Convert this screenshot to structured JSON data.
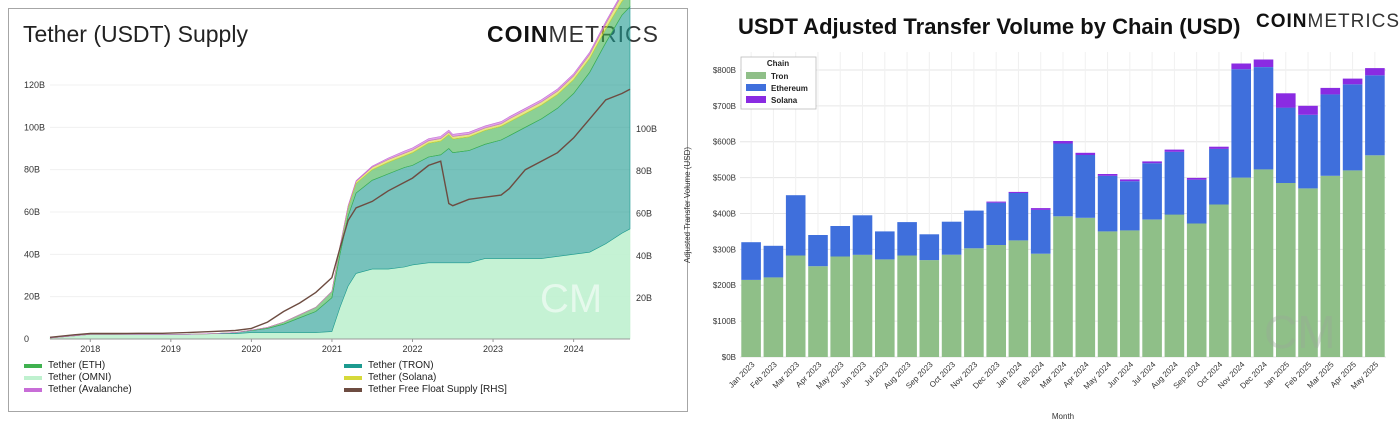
{
  "brand": {
    "bold": "COIN",
    "light": "METRICS"
  },
  "chart_data": [
    {
      "type": "area",
      "title": "Tether (USDT) Supply",
      "stacked": true,
      "x": [
        2017.5,
        2017.8,
        2018.0,
        2018.3,
        2018.6,
        2018.9,
        2019.2,
        2019.5,
        2019.8,
        2020.0,
        2020.2,
        2020.4,
        2020.6,
        2020.8,
        2021.0,
        2021.1,
        2021.2,
        2021.3,
        2021.5,
        2021.7,
        2021.9,
        2022.0,
        2022.2,
        2022.35,
        2022.45,
        2022.5,
        2022.7,
        2022.9,
        2023.1,
        2023.2,
        2023.4,
        2023.6,
        2023.8,
        2024.0,
        2024.2,
        2024.4,
        2024.6,
        2024.7
      ],
      "series": [
        {
          "name": "Tether (ETH)",
          "color": "#3fb14f",
          "values": [
            0,
            0,
            0,
            0,
            0,
            0,
            0,
            0,
            0,
            0.2,
            0.5,
            1,
            1.5,
            2,
            3,
            3.5,
            4,
            4.5,
            5,
            5.5,
            5.5,
            6,
            6.5,
            6.5,
            6.5,
            6.5,
            6.5,
            6.5,
            6.5,
            6.5,
            6.5,
            6.5,
            6.5,
            6.5,
            6.5,
            6.5,
            6.5,
            6.5
          ]
        },
        {
          "name": "Tether (TRON)",
          "color": "#1c9a8f",
          "values": [
            0,
            0,
            0,
            0,
            0,
            0,
            0,
            0,
            0.5,
            1,
            2,
            4,
            7,
            10,
            16,
            25,
            33,
            38,
            42,
            45,
            47,
            47,
            50,
            51,
            54,
            52,
            53,
            54,
            56,
            58,
            62,
            66,
            70,
            76,
            85,
            95,
            103,
            105
          ]
        },
        {
          "name": "Tether (OMNI)",
          "color": "#bff1cf",
          "values": [
            0.5,
            1.5,
            2.2,
            2.2,
            2.2,
            2.2,
            2.2,
            2.5,
            2.5,
            3,
            3,
            3,
            3,
            3,
            3.5,
            15,
            25,
            31,
            33,
            33,
            34,
            35,
            36,
            36,
            36,
            36,
            36,
            38,
            38,
            38,
            38,
            38,
            39,
            40,
            41,
            45,
            50,
            52
          ]
        },
        {
          "name": "Tether (Solana)",
          "color": "#d6d93a",
          "values": [
            0,
            0,
            0,
            0,
            0,
            0,
            0,
            0,
            0,
            0,
            0,
            0,
            0,
            0,
            0,
            0.5,
            0.8,
            1,
            1.2,
            1.3,
            1.3,
            1.3,
            1.2,
            1.2,
            1.2,
            1.2,
            1.2,
            1.2,
            1.2,
            1.5,
            1.5,
            1.5,
            1.6,
            1.8,
            2,
            2.5,
            3,
            3
          ]
        },
        {
          "name": "Tether (Avalanche)",
          "color": "#c86dd7",
          "values": [
            0,
            0,
            0,
            0,
            0,
            0,
            0,
            0,
            0,
            0,
            0,
            0,
            0,
            0,
            0,
            0,
            0.2,
            0.3,
            0.5,
            0.7,
            1,
            1,
            1,
            1,
            1,
            1,
            1,
            1,
            1,
            1,
            1,
            1,
            1,
            1,
            1,
            1,
            1,
            1
          ]
        },
        {
          "name": "Tether Free Float Supply [RHS]",
          "color": "#6d4c41",
          "line": true,
          "values": [
            0.8,
            2,
            2.6,
            2.6,
            2.7,
            2.7,
            3,
            3.5,
            4,
            5,
            8,
            13,
            17,
            22,
            29,
            43,
            56,
            62,
            65,
            70,
            74,
            76,
            82,
            84,
            64,
            63,
            66,
            67,
            68,
            71,
            80,
            84,
            88,
            95,
            104,
            113,
            116,
            118
          ]
        }
      ],
      "xlim": [
        2017.5,
        2024.7
      ],
      "ylim": [
        0,
        120
      ],
      "xticks": [
        "2018",
        "2019",
        "2020",
        "2021",
        "2022",
        "2023",
        "2024"
      ],
      "xtick_values": [
        2018,
        2019,
        2020,
        2021,
        2022,
        2023,
        2024
      ],
      "yticks_left": [
        "0",
        "20B",
        "40B",
        "60B",
        "80B",
        "100B",
        "120B"
      ],
      "yticks_left_values": [
        0,
        20,
        40,
        60,
        80,
        100,
        120
      ],
      "yticks_right": [
        "20B",
        "40B",
        "60B",
        "80B",
        "100B"
      ],
      "yticks_right_values": [
        19.3,
        39.3,
        59.3,
        79.3,
        99.3
      ],
      "legend_position": "bottom"
    },
    {
      "type": "bar",
      "stacked": true,
      "title": "USDT Adjusted Transfer Volume by Chain (USD)",
      "xlabel": "Month",
      "ylabel": "Adjusted Transfer Volume (USD)",
      "legend_title": "Chain",
      "legend_position": "top-left",
      "categories": [
        "Jan 2023",
        "Feb 2023",
        "Mar 2023",
        "Apr 2023",
        "May 2023",
        "Jun 2023",
        "Jul 2023",
        "Aug 2023",
        "Sep 2023",
        "Oct 2023",
        "Nov 2023",
        "Dec 2023",
        "Jan 2024",
        "Feb 2024",
        "Mar 2024",
        "Apr 2024",
        "May 2024",
        "Jun 2024",
        "Jul 2024",
        "Aug 2024",
        "Sep 2024",
        "Oct 2024",
        "Nov 2024",
        "Dec 2024",
        "Jan 2025",
        "Feb 2025",
        "Mar 2025",
        "Apr 2025",
        "May 2025"
      ],
      "series": [
        {
          "name": "Tron",
          "color": "#8fbf88",
          "values": [
            215,
            222,
            283,
            253,
            280,
            285,
            272,
            283,
            270,
            285,
            303,
            312,
            325,
            288,
            392,
            388,
            350,
            353,
            383,
            397,
            372,
            425,
            500,
            523,
            485,
            470,
            505,
            520,
            562
          ]
        },
        {
          "name": "Ethereum",
          "color": "#3f6fdc",
          "values": [
            105,
            88,
            168,
            87,
            85,
            110,
            78,
            93,
            72,
            92,
            105,
            118,
            132,
            122,
            203,
            175,
            155,
            137,
            157,
            175,
            122,
            155,
            302,
            285,
            210,
            205,
            227,
            240,
            223
          ]
        },
        {
          "name": "Solana",
          "color": "#8a2be2",
          "values": [
            0,
            0,
            0,
            0,
            0,
            0,
            0,
            0,
            0,
            0,
            0,
            3,
            3,
            5,
            7,
            6,
            5,
            5,
            5,
            6,
            5,
            6,
            16,
            21,
            40,
            25,
            18,
            16,
            20
          ]
        }
      ],
      "ylim": [
        0,
        850
      ],
      "yticks": [
        "$0B",
        "$100B",
        "$200B",
        "$300B",
        "$400B",
        "$500B",
        "$600B",
        "$700B",
        "$800B"
      ],
      "ytick_values": [
        0,
        100,
        200,
        300,
        400,
        500,
        600,
        700,
        800
      ],
      "grid": true
    }
  ]
}
